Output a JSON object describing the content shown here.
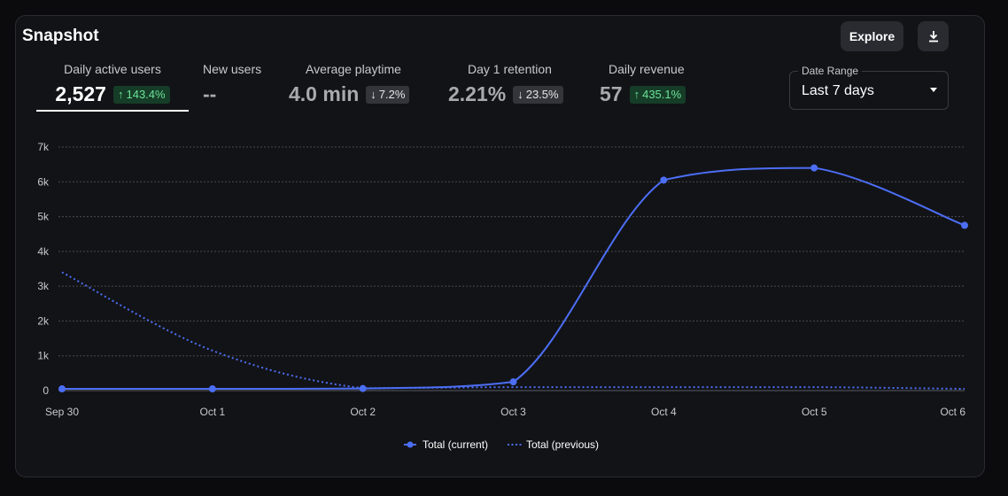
{
  "card": {
    "title": "Snapshot",
    "explore_label": "Explore",
    "download_icon": "download-icon"
  },
  "metrics": [
    {
      "label": "Daily active users",
      "value": "2,527",
      "change": "143.4%",
      "direction": "up",
      "active": true
    },
    {
      "label": "New users",
      "value": "--"
    },
    {
      "label": "Average playtime",
      "value": "4.0 min",
      "change": "7.2%",
      "direction": "down"
    },
    {
      "label": "Day 1 retention",
      "value": "2.21%",
      "change": "23.5%",
      "direction": "down"
    },
    {
      "label": "Daily revenue",
      "value": "57",
      "change": "435.1%",
      "direction": "up"
    }
  ],
  "date_range": {
    "label": "Date Range",
    "value": "Last 7 days"
  },
  "colors": {
    "current": "#4c6ef5",
    "previous": "#4c6ef5",
    "up": "#6be39a",
    "down": "#e5e5e7"
  },
  "chart_data": {
    "type": "line",
    "categories": [
      "Sep 30",
      "Oct 1",
      "Oct 2",
      "Oct 3",
      "Oct 4",
      "Oct 5",
      "Oct 6"
    ],
    "y_ticks": [
      "0",
      "1k",
      "2k",
      "3k",
      "4k",
      "5k",
      "6k",
      "7k"
    ],
    "ylim": [
      0,
      7000
    ],
    "series": [
      {
        "name": "Total (current)",
        "style": "solid",
        "values": [
          50,
          50,
          60,
          250,
          6050,
          6400,
          4750
        ]
      },
      {
        "name": "Total (previous)",
        "style": "dotted",
        "values": [
          3400,
          1150,
          70,
          100,
          100,
          100,
          50
        ]
      }
    ],
    "legend_position": "bottom-center",
    "grid": true
  }
}
